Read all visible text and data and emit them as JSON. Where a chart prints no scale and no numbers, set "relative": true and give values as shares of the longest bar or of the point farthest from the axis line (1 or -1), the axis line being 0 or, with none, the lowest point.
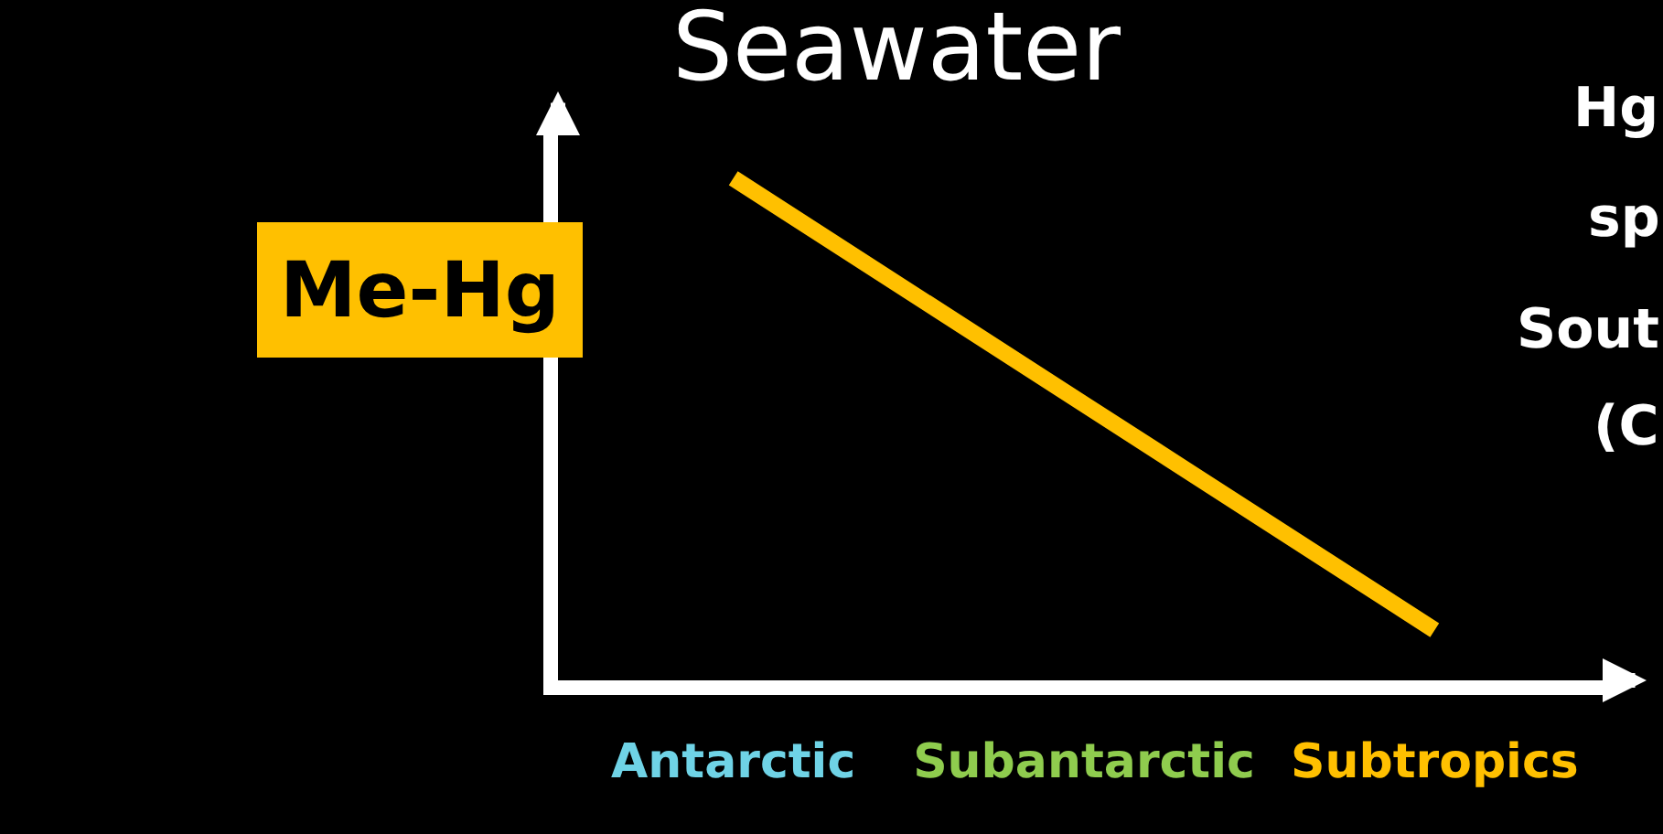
{
  "chart_data": {
    "type": "line",
    "title": "Seawater",
    "ylabel": "Me-Hg",
    "categories": [
      "Antarctic",
      "Subantarctic",
      "Subtropics"
    ],
    "colors": [
      "#6fd3e6",
      "#8fcc4e",
      "#ffc000"
    ],
    "series": [
      {
        "color": "#ffc000",
        "values": [
          1,
          0.55,
          0.1
        ]
      }
    ],
    "relative": true,
    "marker": "none",
    "line_style": "solid",
    "grid": false,
    "annotations": [
      "Hg",
      "sp",
      "Sout",
      "(C"
    ]
  }
}
